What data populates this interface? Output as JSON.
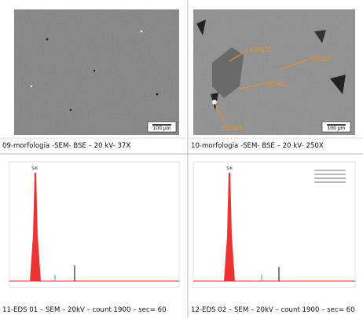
{
  "panels": [
    {
      "caption": "09-morfologia -SEM- BSE – 20 kV- 37X",
      "scale_bar": "100 µm"
    },
    {
      "caption": "10-morfologia -SEM- BSE – 20 kV- 250X",
      "scale_bar": "100 µm",
      "labels": [
        "EDS02",
        "EDS03",
        "EDS01",
        "EDS04"
      ]
    },
    {
      "caption": "11-EDS 01 – SEM – 20kV – count 1900 – sec= 60",
      "peak_label": "SiK"
    },
    {
      "caption": "12-EDS 02 – SEM – 20kV – count 1900 – sec= 60",
      "peak_label": "SiK"
    }
  ]
}
